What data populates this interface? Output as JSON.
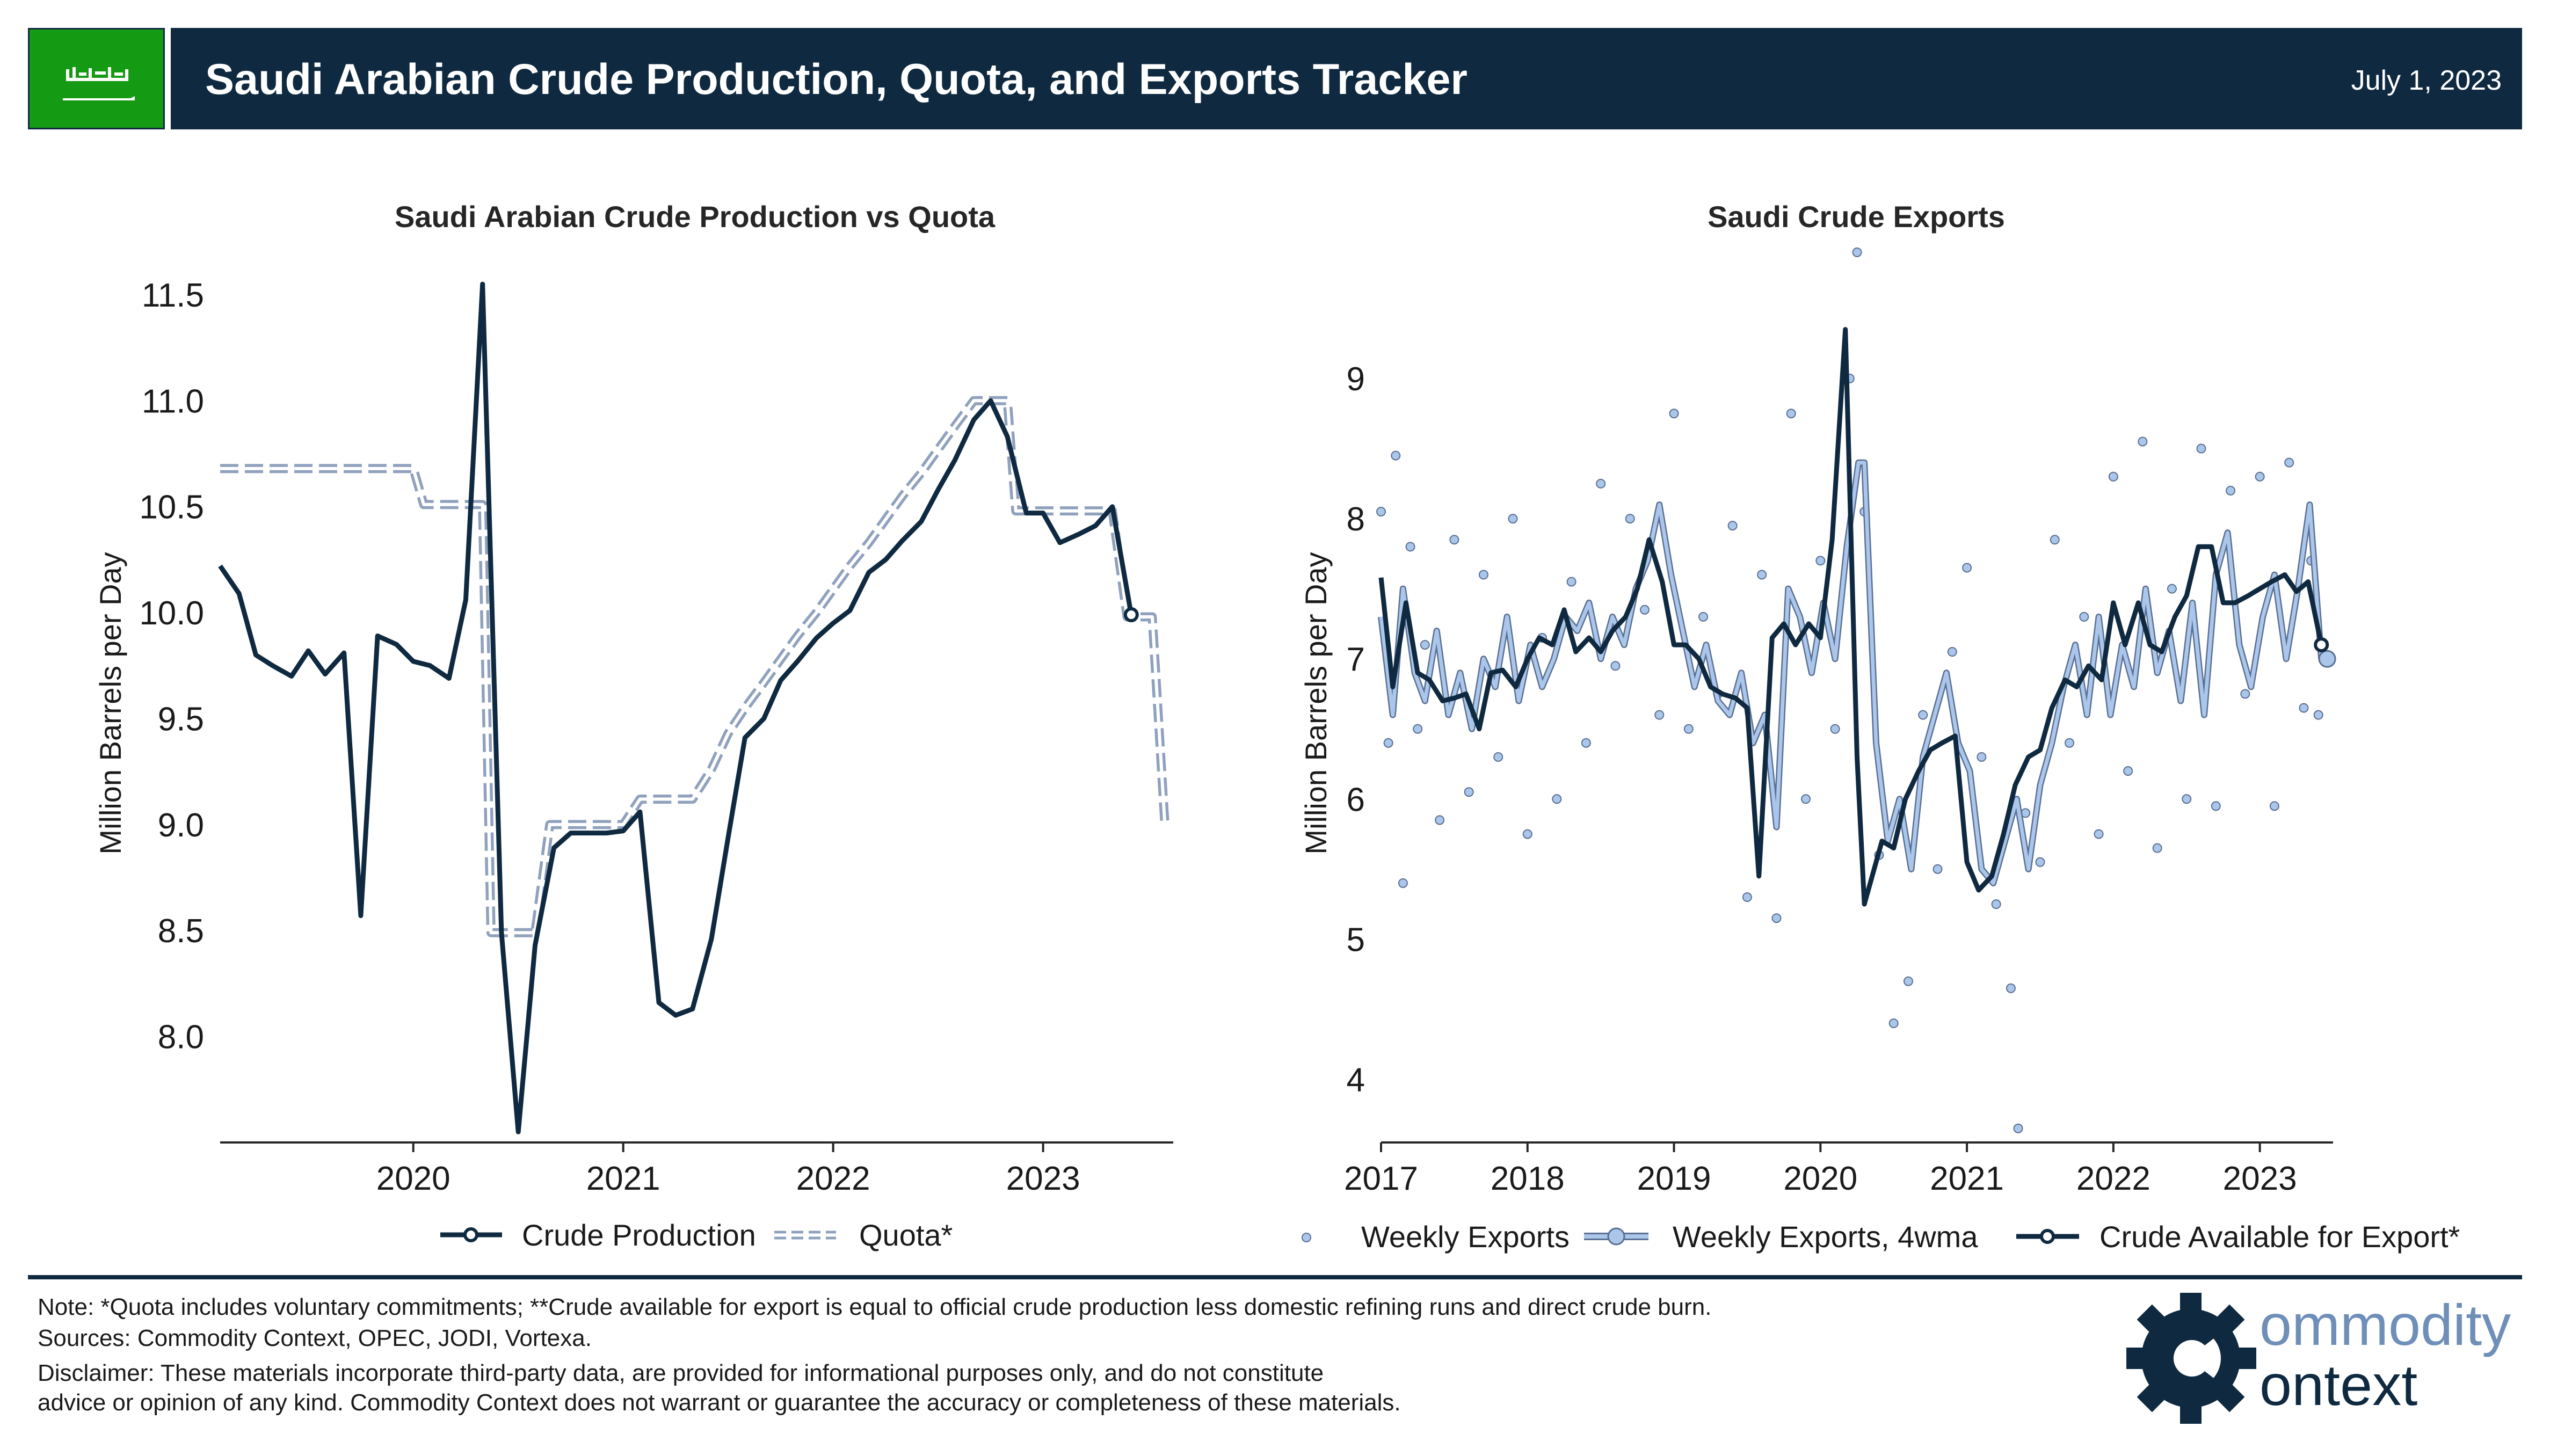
{
  "header": {
    "title": "Saudi Arabian Crude Production, Quota, and Exports Tracker",
    "date": "July 1, 2023",
    "flag_color": "#159a14"
  },
  "colors": {
    "navy": "#0f2a40",
    "quota": "#8fa1bd",
    "weekly": "#aac6ea",
    "header_bg": "#0f2a40"
  },
  "footer": {
    "note": "Note: *Quota includes voluntary commitments; **Crude available for export is equal to official crude production less domestic refining runs and direct crude burn.",
    "sources": "Sources: Commodity Context, OPEC, JODI, Vortexa.",
    "disclaimer1": "Disclaimer: These materials incorporate third-party data, are provided for informational purposes only, and do not constitute",
    "disclaimer2": "advice or opinion of any kind. Commodity Context does not warrant or guarantee the accuracy or completeness of these materials.",
    "logo_top": "ommodity",
    "logo_bottom": "ontext"
  },
  "chart_data": [
    {
      "type": "line",
      "title": "Saudi Arabian Crude Production vs Quota",
      "ylabel": "Million Barrels per Day",
      "xlim": [
        2019.08,
        2023.62
      ],
      "ylim": [
        7.5,
        11.7
      ],
      "xticks": [
        2020,
        2021,
        2022,
        2023
      ],
      "xtick_labels": [
        "2020",
        "2021",
        "2022",
        "2023"
      ],
      "yticks": [
        8.0,
        8.5,
        9.0,
        9.5,
        10.0,
        10.5,
        11.0,
        11.5
      ],
      "ytick_labels": [
        "8.0",
        "8.5",
        "9.0",
        "9.5",
        "10.0",
        "10.5",
        "11.0",
        "11.5"
      ],
      "legend": "bottom-center",
      "series": [
        {
          "name": "Crude Production",
          "style": "solid",
          "x": [
            2019.08,
            2019.17,
            2019.25,
            2019.33,
            2019.42,
            2019.5,
            2019.58,
            2019.67,
            2019.75,
            2019.83,
            2019.92,
            2020.0,
            2020.08,
            2020.17,
            2020.25,
            2020.33,
            2020.42,
            2020.5,
            2020.58,
            2020.67,
            2020.75,
            2020.83,
            2020.92,
            2021.0,
            2021.08,
            2021.17,
            2021.25,
            2021.33,
            2021.42,
            2021.5,
            2021.58,
            2021.67,
            2021.75,
            2021.83,
            2021.92,
            2022.0,
            2022.08,
            2022.17,
            2022.25,
            2022.33,
            2022.42,
            2022.5,
            2022.58,
            2022.67,
            2022.75,
            2022.83,
            2022.92,
            2023.0,
            2023.08,
            2023.17,
            2023.25,
            2023.33,
            2023.42
          ],
          "values": [
            10.22,
            10.09,
            9.8,
            9.75,
            9.7,
            9.82,
            9.71,
            9.81,
            8.57,
            9.89,
            9.85,
            9.77,
            9.75,
            9.69,
            10.06,
            11.55,
            8.49,
            7.55,
            8.43,
            8.89,
            8.96,
            8.96,
            8.96,
            8.97,
            9.06,
            8.16,
            8.1,
            8.13,
            8.46,
            8.94,
            9.41,
            9.5,
            9.68,
            9.77,
            9.88,
            9.95,
            10.01,
            10.19,
            10.25,
            10.34,
            10.43,
            10.58,
            10.72,
            10.91,
            11.0,
            10.83,
            10.47,
            10.47,
            10.33,
            10.37,
            10.41,
            10.5,
            9.99
          ]
        },
        {
          "name": "Quota*",
          "style": "double-dashed",
          "x": [
            2019.08,
            2020.0,
            2020.05,
            2020.25,
            2020.33,
            2020.37,
            2020.42,
            2020.58,
            2020.65,
            2020.92,
            2021.0,
            2021.08,
            2021.1,
            2021.33,
            2021.42,
            2021.5,
            2021.58,
            2021.67,
            2021.75,
            2021.83,
            2021.92,
            2022.0,
            2022.08,
            2022.17,
            2022.25,
            2022.33,
            2022.42,
            2022.5,
            2022.58,
            2022.67,
            2022.75,
            2022.83,
            2022.87,
            2022.92,
            2023.25,
            2023.33,
            2023.4,
            2023.5,
            2023.52,
            2023.58
          ],
          "values": [
            10.68,
            10.68,
            10.51,
            10.51,
            10.51,
            8.49,
            8.49,
            8.49,
            9.0,
            9.0,
            9.0,
            9.12,
            9.12,
            9.12,
            9.26,
            9.43,
            9.55,
            9.67,
            9.78,
            9.89,
            10.0,
            10.11,
            10.22,
            10.33,
            10.44,
            10.55,
            10.66,
            10.77,
            10.88,
            11.0,
            11.0,
            11.0,
            10.48,
            10.48,
            10.48,
            10.48,
            9.98,
            9.98,
            9.98,
            9.0
          ]
        }
      ]
    },
    {
      "type": "line",
      "title": "Saudi Crude Exports",
      "ylabel": "Million Barrels per Day",
      "xlim": [
        2017.0,
        2023.5
      ],
      "ylim": [
        3.55,
        9.9
      ],
      "xticks": [
        2017,
        2018,
        2019,
        2020,
        2021,
        2022,
        2023
      ],
      "xtick_labels": [
        "2017",
        "2018",
        "2019",
        "2020",
        "2021",
        "2022",
        "2023"
      ],
      "yticks": [
        4,
        5,
        6,
        7,
        8,
        9
      ],
      "ytick_labels": [
        "4",
        "5",
        "6",
        "7",
        "8",
        "9"
      ],
      "legend": "bottom-center",
      "series": [
        {
          "name": "Weekly Exports",
          "style": "points",
          "x": [
            2017.0,
            2017.05,
            2017.1,
            2017.15,
            2017.2,
            2017.25,
            2017.3,
            2017.4,
            2017.5,
            2017.6,
            2017.7,
            2017.8,
            2017.9,
            2018.0,
            2018.1,
            2018.2,
            2018.3,
            2018.4,
            2018.5,
            2018.6,
            2018.7,
            2018.8,
            2018.9,
            2019.0,
            2019.1,
            2019.2,
            2019.3,
            2019.4,
            2019.5,
            2019.6,
            2019.7,
            2019.8,
            2019.9,
            2020.0,
            2020.1,
            2020.2,
            2020.25,
            2020.3,
            2020.4,
            2020.5,
            2020.6,
            2020.7,
            2020.8,
            2020.9,
            2021.0,
            2021.1,
            2021.2,
            2021.3,
            2021.35,
            2021.4,
            2021.5,
            2021.6,
            2021.7,
            2021.8,
            2021.9,
            2022.0,
            2022.1,
            2022.2,
            2022.3,
            2022.4,
            2022.5,
            2022.6,
            2022.7,
            2022.8,
            2022.9,
            2023.0,
            2023.1,
            2023.2,
            2023.3,
            2023.35,
            2023.4
          ],
          "values": [
            8.05,
            6.4,
            8.45,
            5.4,
            7.8,
            6.5,
            7.1,
            5.85,
            7.85,
            6.05,
            7.6,
            6.3,
            8.0,
            5.75,
            7.15,
            6.0,
            7.55,
            6.4,
            8.25,
            6.95,
            8.0,
            7.35,
            6.6,
            8.75,
            6.5,
            7.3,
            6.75,
            7.95,
            5.3,
            7.6,
            5.15,
            8.75,
            6.0,
            7.7,
            6.5,
            9.0,
            9.9,
            8.05,
            5.6,
            4.4,
            4.7,
            6.6,
            5.5,
            7.05,
            7.65,
            6.3,
            5.25,
            4.65,
            3.65,
            5.9,
            5.55,
            7.85,
            6.4,
            7.3,
            5.75,
            8.3,
            6.2,
            8.55,
            5.65,
            7.5,
            6.0,
            8.5,
            5.95,
            8.2,
            6.75,
            8.3,
            5.95,
            8.4,
            6.65,
            7.7,
            6.6
          ]
        },
        {
          "name": "Weekly Exports, 4wma",
          "style": "double-line",
          "x": [
            2017.0,
            2017.08,
            2017.15,
            2017.23,
            2017.3,
            2017.38,
            2017.46,
            2017.54,
            2017.62,
            2017.7,
            2017.78,
            2017.86,
            2017.94,
            2018.02,
            2018.1,
            2018.18,
            2018.26,
            2018.34,
            2018.42,
            2018.5,
            2018.58,
            2018.66,
            2018.74,
            2018.82,
            2018.9,
            2018.98,
            2019.06,
            2019.14,
            2019.22,
            2019.3,
            2019.38,
            2019.46,
            2019.54,
            2019.62,
            2019.7,
            2019.78,
            2019.86,
            2019.94,
            2020.02,
            2020.1,
            2020.18,
            2020.26,
            2020.3,
            2020.38,
            2020.46,
            2020.54,
            2020.62,
            2020.7,
            2020.78,
            2020.86,
            2020.94,
            2021.02,
            2021.1,
            2021.18,
            2021.26,
            2021.34,
            2021.42,
            2021.5,
            2021.58,
            2021.66,
            2021.74,
            2021.82,
            2021.9,
            2021.98,
            2022.06,
            2022.14,
            2022.22,
            2022.3,
            2022.38,
            2022.46,
            2022.54,
            2022.62,
            2022.7,
            2022.78,
            2022.86,
            2022.94,
            2023.02,
            2023.1,
            2023.18,
            2023.26,
            2023.34,
            2023.42,
            2023.46
          ],
          "values": [
            7.3,
            6.6,
            7.5,
            6.9,
            6.7,
            7.2,
            6.6,
            6.9,
            6.5,
            7.0,
            6.8,
            7.3,
            6.7,
            7.1,
            6.8,
            7.0,
            7.3,
            7.2,
            7.4,
            7.0,
            7.3,
            7.1,
            7.5,
            7.7,
            8.1,
            7.6,
            7.2,
            6.8,
            7.1,
            6.7,
            6.6,
            6.9,
            6.4,
            6.6,
            5.8,
            7.5,
            7.3,
            6.9,
            7.4,
            7.0,
            7.8,
            8.4,
            8.4,
            6.4,
            5.7,
            6.0,
            5.5,
            6.3,
            6.6,
            6.9,
            6.4,
            6.2,
            5.5,
            5.4,
            5.7,
            6.0,
            5.5,
            6.1,
            6.4,
            6.8,
            7.1,
            6.6,
            7.3,
            6.6,
            7.1,
            6.8,
            7.5,
            6.9,
            7.2,
            6.7,
            7.4,
            6.6,
            7.6,
            7.9,
            7.1,
            6.8,
            7.3,
            7.6,
            7.0,
            7.5,
            8.1,
            7.0,
            7.0
          ]
        },
        {
          "name": "Crude Available for Export*",
          "style": "solid",
          "x": [
            2017.0,
            2017.08,
            2017.17,
            2017.25,
            2017.33,
            2017.42,
            2017.5,
            2017.58,
            2017.67,
            2017.75,
            2017.83,
            2017.92,
            2018.0,
            2018.08,
            2018.17,
            2018.25,
            2018.33,
            2018.42,
            2018.5,
            2018.58,
            2018.67,
            2018.75,
            2018.83,
            2018.92,
            2019.0,
            2019.08,
            2019.17,
            2019.25,
            2019.33,
            2019.42,
            2019.5,
            2019.58,
            2019.67,
            2019.75,
            2019.83,
            2019.92,
            2020.0,
            2020.08,
            2020.17,
            2020.25,
            2020.3,
            2020.42,
            2020.5,
            2020.58,
            2020.67,
            2020.75,
            2020.83,
            2020.92,
            2021.0,
            2021.08,
            2021.17,
            2021.25,
            2021.33,
            2021.42,
            2021.5,
            2021.58,
            2021.67,
            2021.75,
            2021.83,
            2021.92,
            2022.0,
            2022.08,
            2022.17,
            2022.25,
            2022.33,
            2022.42,
            2022.5,
            2022.58,
            2022.67,
            2022.75,
            2022.83,
            2022.92,
            2023.0,
            2023.08,
            2023.17,
            2023.25,
            2023.33,
            2023.42
          ],
          "values": [
            7.58,
            6.8,
            7.4,
            6.9,
            6.85,
            6.7,
            6.72,
            6.75,
            6.5,
            6.9,
            6.92,
            6.8,
            7.0,
            7.15,
            7.1,
            7.35,
            7.05,
            7.15,
            7.05,
            7.2,
            7.3,
            7.5,
            7.85,
            7.55,
            7.1,
            7.1,
            7.0,
            6.8,
            6.75,
            6.72,
            6.65,
            5.45,
            7.15,
            7.25,
            7.1,
            7.25,
            7.15,
            7.85,
            9.35,
            6.3,
            5.25,
            5.7,
            5.65,
            6.0,
            6.2,
            6.35,
            6.4,
            6.45,
            5.55,
            5.35,
            5.45,
            5.75,
            6.1,
            6.3,
            6.35,
            6.65,
            6.85,
            6.8,
            6.95,
            6.85,
            7.4,
            7.1,
            7.4,
            7.1,
            7.05,
            7.3,
            7.45,
            7.8,
            7.8,
            7.4,
            7.4,
            7.45,
            7.5,
            7.55,
            7.6,
            7.48,
            7.55,
            7.1
          ]
        }
      ]
    }
  ]
}
